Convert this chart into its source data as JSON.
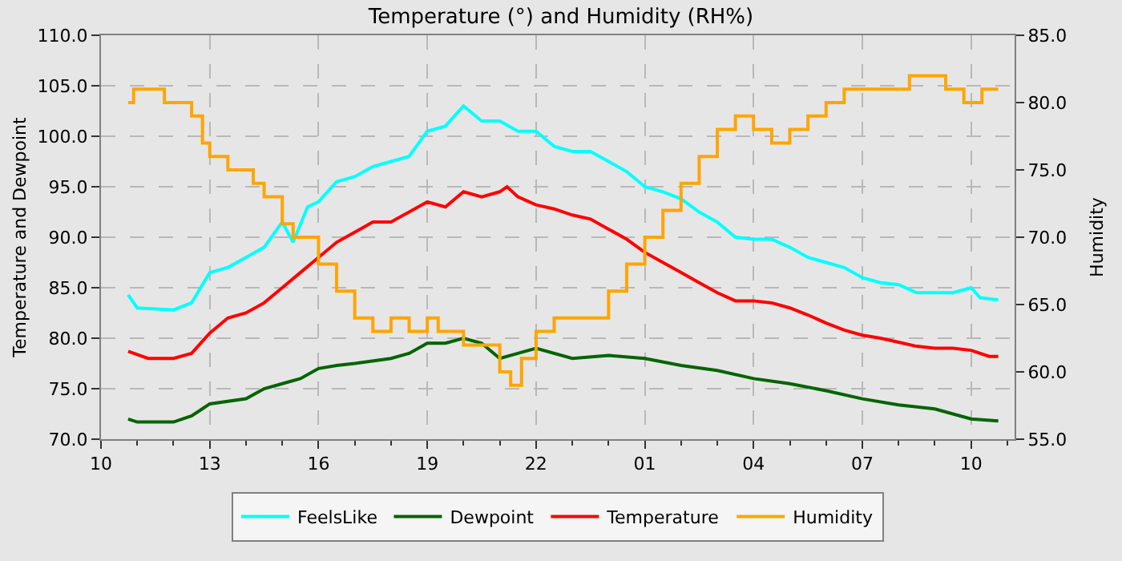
{
  "chart_data": {
    "type": "line",
    "title": "Temperature (°) and Humidity (RH%)",
    "ylabel": "Temperature and Dewpoint",
    "y2label": "Humidity",
    "xlim": [
      "--01-01T10:00",
      "--01-02T11:12"
    ],
    "xticks": [
      {
        "value": "--01-01T10:00",
        "label": "10"
      },
      {
        "value": "--01-01T13:00",
        "label": "13"
      },
      {
        "value": "--01-01T16:00",
        "label": "16"
      },
      {
        "value": "--01-01T19:00",
        "label": "19"
      },
      {
        "value": "--01-01T22:00",
        "label": "22"
      },
      {
        "value": "--01-02T01:00",
        "label": "01"
      },
      {
        "value": "--01-02T04:00",
        "label": "04"
      },
      {
        "value": "--01-02T07:00",
        "label": "07"
      },
      {
        "value": "--01-02T10:00",
        "label": "10"
      }
    ],
    "ylim": [
      70,
      110
    ],
    "yticks": [
      {
        "value": 70,
        "label": "70.0"
      },
      {
        "value": 75,
        "label": "75.0"
      },
      {
        "value": 80,
        "label": "80.0"
      },
      {
        "value": 85,
        "label": "85.0"
      },
      {
        "value": 90,
        "label": "90.0"
      },
      {
        "value": 95,
        "label": "95.0"
      },
      {
        "value": 100,
        "label": "100.0"
      },
      {
        "value": 105,
        "label": "105.0"
      },
      {
        "value": 110,
        "label": "110.0"
      }
    ],
    "y2lim": [
      55,
      85
    ],
    "y2ticks": [
      {
        "value": 55,
        "label": "55.0"
      },
      {
        "value": 60,
        "label": "60.0"
      },
      {
        "value": 65,
        "label": "65.0"
      },
      {
        "value": 70,
        "label": "70.0"
      },
      {
        "value": 75,
        "label": "75.0"
      },
      {
        "value": 80,
        "label": "80.0"
      },
      {
        "value": 85,
        "label": "85.0"
      }
    ],
    "grid": true,
    "legend": "bottom",
    "marker": "none",
    "line_style": "solid",
    "series": [
      {
        "name": "FeelsLike",
        "color": "#00ffff",
        "x": [
          "--01-01T10:45",
          "--01-01T11:00",
          "--01-01T12:00",
          "--01-01T12:30",
          "--01-01T13:00",
          "--01-01T13:30",
          "--01-01T14:00",
          "--01-01T14:30",
          "--01-01T15:00",
          "--01-01T15:18",
          "--01-01T15:42",
          "--01-01T16:00",
          "--01-01T16:30",
          "--01-01T17:00",
          "--01-01T17:30",
          "--01-01T18:00",
          "--01-01T18:30",
          "--01-01T19:00",
          "--01-01T19:30",
          "--01-01T20:00",
          "--01-01T20:30",
          "--01-01T21:00",
          "--01-01T21:30",
          "--01-01T22:00",
          "--01-01T22:30",
          "--01-01T23:00",
          "--01-01T23:30",
          "--01-02T00:00",
          "--01-02T00:30",
          "--01-02T01:00",
          "--01-02T01:30",
          "--01-02T02:00",
          "--01-02T02:30",
          "--01-02T03:00",
          "--01-02T03:30",
          "--01-02T04:00",
          "--01-02T04:30",
          "--01-02T05:00",
          "--01-02T05:30",
          "--01-02T06:00",
          "--01-02T06:30",
          "--01-02T07:00",
          "--01-02T07:30",
          "--01-02T08:00",
          "--01-02T08:30",
          "--01-02T09:00",
          "--01-02T09:30",
          "--01-02T10:00",
          "--01-02T10:15",
          "--01-02T10:45"
        ],
        "values": [
          84.3,
          83,
          82.8,
          83.5,
          86.5,
          87,
          88,
          89,
          91.5,
          89.5,
          93,
          93.5,
          95.5,
          96,
          97,
          97.5,
          98,
          100.5,
          101,
          103,
          101.5,
          101.5,
          100.5,
          100.5,
          99,
          98.5,
          98.5,
          97.5,
          96.5,
          95,
          94.5,
          93.8,
          92.5,
          91.5,
          90,
          89.8,
          89.8,
          89,
          88,
          87.5,
          87,
          86,
          85.5,
          85.3,
          84.5,
          84.5,
          84.5,
          85,
          84,
          83.8
        ]
      },
      {
        "name": "Dewpoint",
        "color": "#006400",
        "x": [
          "--01-01T10:45",
          "--01-01T11:00",
          "--01-01T12:00",
          "--01-01T12:30",
          "--01-01T13:00",
          "--01-01T14:00",
          "--01-01T14:30",
          "--01-01T15:00",
          "--01-01T15:30",
          "--01-01T16:00",
          "--01-01T16:30",
          "--01-01T17:00",
          "--01-01T18:00",
          "--01-01T18:30",
          "--01-01T19:00",
          "--01-01T19:30",
          "--01-01T20:00",
          "--01-01T20:30",
          "--01-01T21:00",
          "--01-01T21:30",
          "--01-01T22:00",
          "--01-01T23:00",
          "--01-02T00:00",
          "--01-02T01:00",
          "--01-02T02:00",
          "--01-02T03:00",
          "--01-02T04:00",
          "--01-02T05:00",
          "--01-02T06:00",
          "--01-02T07:00",
          "--01-02T08:00",
          "--01-02T09:00",
          "--01-02T10:00",
          "--01-02T10:45"
        ],
        "values": [
          72,
          71.7,
          71.7,
          72.3,
          73.5,
          74,
          75,
          75.5,
          76,
          77,
          77.3,
          77.5,
          78,
          78.5,
          79.5,
          79.5,
          80,
          79.5,
          78,
          78.5,
          79,
          78,
          78.3,
          78,
          77.3,
          76.8,
          76,
          75.5,
          74.8,
          74,
          73.4,
          73,
          72,
          71.8
        ]
      },
      {
        "name": "Temperature",
        "color": "#ff0000",
        "x": [
          "--01-01T10:45",
          "--01-01T11:18",
          "--01-01T12:00",
          "--01-01T12:30",
          "--01-01T13:00",
          "--01-01T13:30",
          "--01-01T14:00",
          "--01-01T14:30",
          "--01-01T15:00",
          "--01-01T15:30",
          "--01-01T16:00",
          "--01-01T16:30",
          "--01-01T17:00",
          "--01-01T17:30",
          "--01-01T18:00",
          "--01-01T18:30",
          "--01-01T19:00",
          "--01-01T19:30",
          "--01-01T20:00",
          "--01-01T20:30",
          "--01-01T21:00",
          "--01-01T21:12",
          "--01-01T21:30",
          "--01-01T22:00",
          "--01-01T22:30",
          "--01-01T23:00",
          "--01-01T23:30",
          "--01-02T00:00",
          "--01-02T00:30",
          "--01-02T01:00",
          "--01-02T01:30",
          "--01-02T02:00",
          "--01-02T02:30",
          "--01-02T03:00",
          "--01-02T03:30",
          "--01-02T04:00",
          "--01-02T04:30",
          "--01-02T05:00",
          "--01-02T05:30",
          "--01-02T06:00",
          "--01-02T06:30",
          "--01-02T07:00",
          "--01-02T07:30",
          "--01-02T08:00",
          "--01-02T08:30",
          "--01-02T09:00",
          "--01-02T09:30",
          "--01-02T10:00",
          "--01-02T10:30",
          "--01-02T10:45"
        ],
        "values": [
          78.7,
          78,
          78,
          78.5,
          80.5,
          82,
          82.5,
          83.5,
          85,
          86.5,
          88,
          89.5,
          90.5,
          91.5,
          91.5,
          92.5,
          93.5,
          93,
          94.5,
          94,
          94.5,
          95,
          94,
          93.2,
          92.8,
          92.2,
          91.8,
          90.8,
          89.8,
          88.5,
          87.5,
          86.5,
          85.5,
          84.5,
          83.7,
          83.7,
          83.5,
          83,
          82.3,
          81.5,
          80.8,
          80.3,
          80,
          79.6,
          79.2,
          79,
          79,
          78.8,
          78.2,
          78.2
        ]
      },
      {
        "name": "Humidity",
        "color": "#ffa500",
        "type": "step",
        "axis": "y2",
        "x": [
          "--01-01T10:45",
          "--01-01T10:54",
          "--01-01T11:45",
          "--01-01T12:30",
          "--01-01T12:48",
          "--01-01T13:00",
          "--01-01T13:30",
          "--01-01T14:12",
          "--01-01T14:30",
          "--01-01T15:00",
          "--01-01T15:18",
          "--01-01T16:00",
          "--01-01T16:30",
          "--01-01T17:00",
          "--01-01T17:30",
          "--01-01T18:00",
          "--01-01T18:30",
          "--01-01T19:00",
          "--01-01T19:18",
          "--01-01T20:00",
          "--01-01T20:30",
          "--01-01T21:00",
          "--01-01T21:18",
          "--01-01T21:36",
          "--01-01T22:00",
          "--01-01T22:30",
          "--01-01T23:00",
          "--01-01T23:30",
          "--01-02T00:00",
          "--01-02T00:30",
          "--01-02T01:00",
          "--01-02T01:30",
          "--01-02T02:00",
          "--01-02T02:30",
          "--01-02T03:00",
          "--01-02T03:30",
          "--01-02T04:00",
          "--01-02T04:30",
          "--01-02T05:00",
          "--01-02T05:30",
          "--01-02T06:00",
          "--01-02T06:30",
          "--01-02T08:18",
          "--01-02T09:18",
          "--01-02T09:48",
          "--01-02T10:18",
          "--01-02T10:45"
        ],
        "values": [
          80,
          81,
          80,
          79,
          77,
          76,
          75,
          74,
          73,
          71,
          70,
          68,
          66,
          64,
          63,
          64,
          63,
          64,
          63,
          62,
          62,
          60,
          59,
          61,
          63,
          64,
          64,
          64,
          66,
          68,
          70,
          72,
          74,
          76,
          78,
          79,
          78,
          77,
          78,
          79,
          80,
          81,
          82,
          81,
          80,
          81,
          81
        ]
      }
    ]
  }
}
